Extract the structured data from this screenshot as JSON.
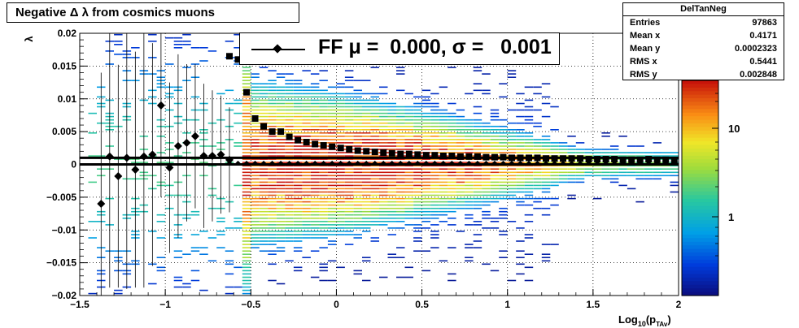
{
  "chart_data": {
    "type": "heatmap",
    "title": "Negative Δ λ from cosmics muons",
    "xlabel": "Log10(pTAv)",
    "ylabel": "λ",
    "xlim": [
      -1.5,
      2.0
    ],
    "ylim": [
      -0.02,
      0.02
    ],
    "xticks": [
      "−1.5",
      "−1",
      "−0.5",
      "0",
      "0.5",
      "1",
      "1.5",
      "2"
    ],
    "yticks": [
      "−0.02",
      "−0.015",
      "−0.01",
      "−0.005",
      "0",
      "0.005",
      "0.01",
      "0.015",
      "0.02"
    ],
    "grid": true,
    "colorbar": {
      "scale": "log",
      "tick_labels": [
        "1",
        "10"
      ]
    },
    "stats": {
      "name": "DelTanNeg",
      "rows": [
        {
          "label": "Entries",
          "value": "97863"
        },
        {
          "label": "Mean x",
          "value": "0.4171"
        },
        {
          "label": "Mean y",
          "value": "0.0002323"
        },
        {
          "label": "RMS x",
          "value": "0.5441"
        },
        {
          "label": "RMS y",
          "value": "0.002848"
        }
      ]
    },
    "legend": {
      "text": "FF μ =  0.000, σ =   0.001",
      "placement": "top-center"
    },
    "fit_lines": [
      0.001,
      0.0
    ],
    "profile_mean": {
      "x": [
        -1.375,
        -1.325,
        -1.275,
        -1.225,
        -1.175,
        -1.125,
        -1.075,
        -1.025,
        -0.975,
        -0.925,
        -0.875,
        -0.825,
        -0.775,
        -0.725,
        -0.675,
        -0.625
      ],
      "y": [
        -0.006,
        0.0012,
        -0.0018,
        0.001,
        -0.0008,
        0.0012,
        0.0015,
        0.009,
        -0.0005,
        0.0028,
        0.0033,
        0.0043,
        0.0013,
        0.0013,
        0.0015,
        0.0007
      ],
      "err": [
        0.02,
        0.02,
        0.017,
        0.02,
        0.018,
        0.02,
        0.017,
        0.014,
        0.013,
        0.014,
        0.012,
        0.011,
        0.011,
        0.01,
        0.009,
        0.008
      ]
    },
    "profile_rms": {
      "x": [
        -0.625,
        -0.575,
        -0.525,
        -0.475,
        -0.425,
        -0.375,
        -0.325,
        -0.275,
        -0.225,
        -0.175,
        -0.125,
        -0.075,
        -0.025,
        0.025,
        0.075,
        0.125,
        0.175,
        0.225,
        0.275,
        0.325,
        0.375,
        0.425,
        0.475,
        0.525,
        0.575,
        0.625,
        0.675,
        0.725,
        0.775,
        0.825,
        0.875,
        0.925,
        0.975,
        1.025,
        1.075,
        1.125,
        1.175,
        1.225,
        1.275,
        1.325,
        1.375,
        1.425,
        1.475,
        1.525,
        1.575,
        1.625,
        1.675,
        1.725,
        1.775,
        1.825,
        1.875,
        1.925,
        1.975
      ],
      "y": [
        0.0165,
        0.016,
        0.011,
        0.007,
        0.0058,
        0.005,
        0.005,
        0.0042,
        0.0037,
        0.0034,
        0.0031,
        0.0029,
        0.0027,
        0.0025,
        0.0023,
        0.0021,
        0.002,
        0.0019,
        0.0018,
        0.0017,
        0.0016,
        0.0016,
        0.0015,
        0.0014,
        0.0014,
        0.0013,
        0.0013,
        0.0012,
        0.0012,
        0.0012,
        0.0011,
        0.0011,
        0.0011,
        0.001,
        0.001,
        0.001,
        0.001,
        0.0009,
        0.0009,
        0.0009,
        0.0009,
        0.0009,
        0.0008,
        0.0008,
        0.0008,
        0.0008,
        0.0007,
        0.0007,
        0.0007,
        0.0008,
        0.0007,
        0.0007,
        0.0006
      ]
    }
  }
}
